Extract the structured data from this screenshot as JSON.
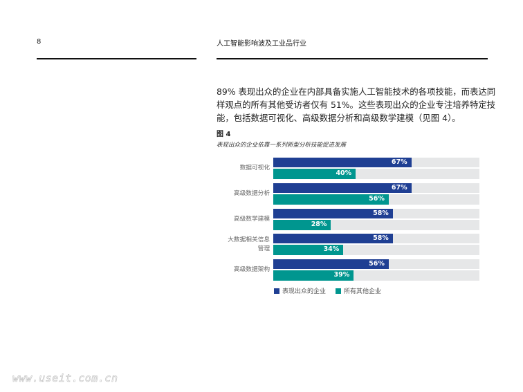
{
  "header": {
    "page_number": "8",
    "running_title": "人工智能影响波及工业品行业"
  },
  "body_text": "89% 表现出众的企业在内部具备实施人工智能技术的各项技能，而表达同样观点的所有其他受访者仅有 51%。这些表现出众的企业专注培养特定技能，包括数据可视化、高级数据分析和高级数学建模（见图 4）。",
  "figure": {
    "label": "图 4",
    "caption": "表现出众的企业依靠一系列新型分析技能促进发展"
  },
  "watermark": "www.useit.com.cn",
  "chart_data": {
    "type": "bar",
    "orientation": "horizontal",
    "title": "表现出众的企业依靠一系列新型分析技能促进发展",
    "categories": [
      "数据可视化",
      "高级数据分析",
      "高级数学建模",
      "大数据相关信息管理",
      "高级数据架构"
    ],
    "category_lines": [
      [
        "数据可视化"
      ],
      [
        "高级数据分析"
      ],
      [
        "高级数学建模"
      ],
      [
        "大数据相关信息",
        "管理"
      ],
      [
        "高级数据架构"
      ]
    ],
    "series": [
      {
        "name": "表现出众的企业",
        "values": [
          67,
          67,
          58,
          58,
          56
        ],
        "labels": [
          "67%",
          "67%",
          "58%",
          "58%",
          "56%"
        ],
        "color": "#1f3f93"
      },
      {
        "name": "所有其他企业",
        "values": [
          40,
          56,
          28,
          34,
          39
        ],
        "labels": [
          "40%",
          "56%",
          "28%",
          "34%",
          "39%"
        ],
        "color": "#00968f"
      }
    ],
    "xlim": [
      0,
      100
    ],
    "track_color": "#e6e7e8",
    "grid": false,
    "legend_position": "bottom-left"
  }
}
